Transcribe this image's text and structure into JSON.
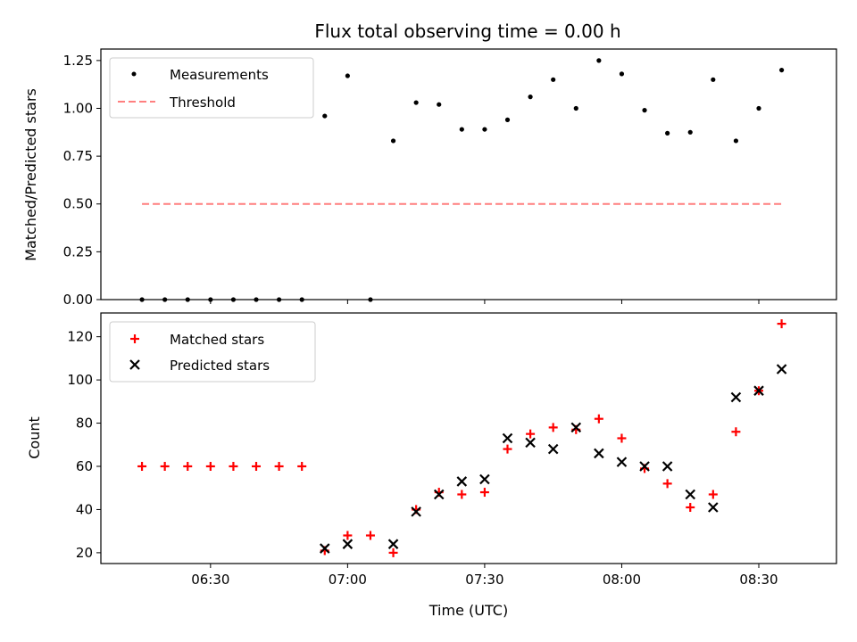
{
  "chart_data": {
    "title": "Flux total observing time = 0.00 h",
    "xlabel": "Time (UTC)",
    "x_ticks": [
      "06:30",
      "07:00",
      "07:30",
      "08:00",
      "08:30"
    ],
    "times": [
      "06:15",
      "06:20",
      "06:25",
      "06:30",
      "06:35",
      "06:40",
      "06:45",
      "06:50",
      "06:55",
      "07:00",
      "07:05",
      "07:10",
      "07:15",
      "07:20",
      "07:25",
      "07:30",
      "07:35",
      "07:40",
      "07:45",
      "07:50",
      "07:55",
      "08:00",
      "08:05",
      "08:10",
      "08:15",
      "08:20",
      "08:25",
      "08:30",
      "08:35"
    ],
    "xlim": [
      "06:06",
      "08:47"
    ],
    "panels": [
      {
        "type": "scatter",
        "ylabel": "Matched/Predicted stars",
        "ylim": [
          0,
          1.31
        ],
        "y_ticks": [
          "0.00",
          "0.25",
          "0.50",
          "0.75",
          "1.00",
          "1.25"
        ],
        "y_tick_values": [
          0,
          0.25,
          0.5,
          0.75,
          1.0,
          1.25
        ],
        "legend_position": "top-left",
        "series": [
          {
            "name": "Measurements",
            "kind": "dot",
            "color": "#000000",
            "x": [
              "06:15",
              "06:20",
              "06:25",
              "06:30",
              "06:35",
              "06:40",
              "06:45",
              "06:50",
              "06:55",
              "07:00",
              "07:10",
              "07:15",
              "07:20",
              "07:25",
              "07:30",
              "07:35",
              "07:40",
              "07:45",
              "07:50",
              "07:55",
              "08:00",
              "08:05",
              "08:10",
              "08:15",
              "08:20",
              "08:25",
              "08:30",
              "08:35",
              "07:05"
            ],
            "y": [
              0,
              0,
              0,
              0,
              0,
              0,
              0,
              0,
              0.96,
              1.17,
              0.83,
              1.03,
              1.02,
              0.89,
              0.89,
              0.94,
              1.06,
              1.15,
              1.0,
              1.25,
              1.18,
              0.99,
              0.87,
              0.875,
              1.15,
              0.83,
              1.0,
              1.2,
              0
            ]
          },
          {
            "name": "Threshold",
            "kind": "dashed-line",
            "color": "#ff7f7f",
            "x": [
              "06:15",
              "08:35"
            ],
            "y": [
              0.5,
              0.5
            ]
          }
        ]
      },
      {
        "type": "scatter",
        "ylabel": "Count",
        "ylim": [
          15,
          131
        ],
        "y_ticks": [
          "20",
          "40",
          "60",
          "80",
          "100",
          "120"
        ],
        "y_tick_values": [
          20,
          40,
          60,
          80,
          100,
          120
        ],
        "legend_position": "top-left",
        "series": [
          {
            "name": "Matched stars",
            "kind": "plus",
            "color": "#ff0000",
            "x": [
              "06:15",
              "06:20",
              "06:25",
              "06:30",
              "06:35",
              "06:40",
              "06:45",
              "06:50",
              "06:55",
              "07:00",
              "07:05",
              "07:10",
              "07:15",
              "07:20",
              "07:25",
              "07:30",
              "07:35",
              "07:40",
              "07:45",
              "07:50",
              "07:55",
              "08:00",
              "08:05",
              "08:10",
              "08:15",
              "08:20",
              "08:25",
              "08:30",
              "08:35"
            ],
            "y": [
              60,
              60,
              60,
              60,
              60,
              60,
              60,
              60,
              21,
              28,
              28,
              20,
              40,
              48,
              47,
              48,
              68,
              75,
              78,
              77,
              82,
              73,
              59,
              52,
              41,
              47,
              76,
              95,
              126
            ]
          },
          {
            "name": "Predicted stars",
            "kind": "x",
            "color": "#000000",
            "x": [
              "06:55",
              "07:00",
              "07:10",
              "07:15",
              "07:20",
              "07:25",
              "07:30",
              "07:35",
              "07:40",
              "07:45",
              "07:50",
              "07:55",
              "08:00",
              "08:05",
              "08:10",
              "08:15",
              "08:20",
              "08:25",
              "08:30",
              "08:35"
            ],
            "y": [
              22,
              24,
              24,
              39,
              47,
              53,
              54,
              73,
              71,
              68,
              78,
              66,
              62,
              60,
              60,
              47,
              41,
              92,
              95,
              105
            ]
          }
        ]
      }
    ]
  }
}
